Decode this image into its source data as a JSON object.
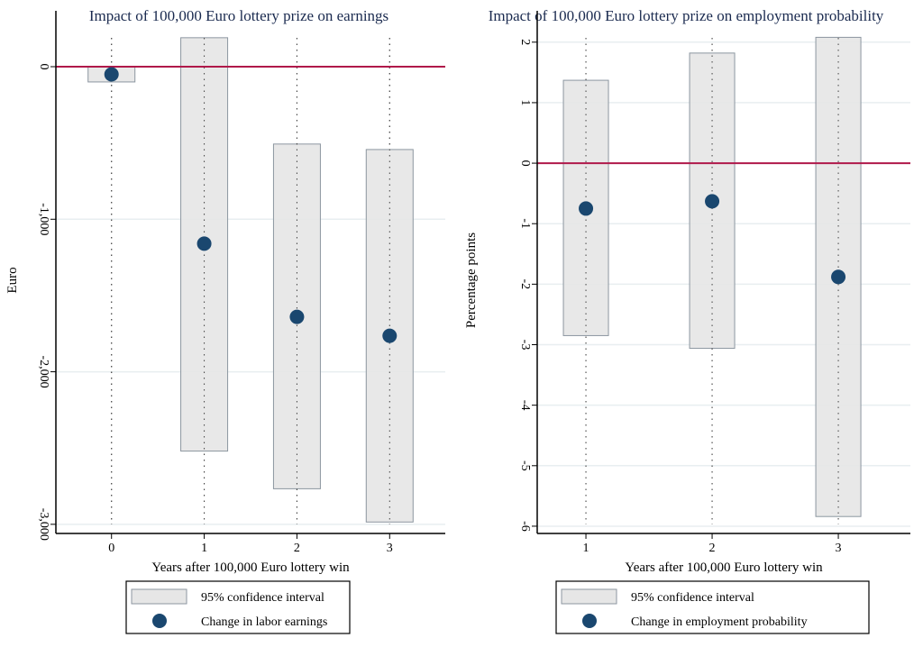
{
  "chart_data": [
    {
      "type": "scatter",
      "title": "Impact of 100,000 Euro lottery prize on earnings",
      "xlabel": "Years after 100,000 Euro lottery win",
      "ylabel": "Euro",
      "x": [
        0,
        1,
        2,
        3
      ],
      "x_tick_labels": [
        "0",
        "1",
        "2",
        "3"
      ],
      "y_ticks": [
        0,
        -1000,
        -2000,
        -3000
      ],
      "y_tick_labels": [
        "0",
        "-1,000",
        "-2,000",
        "-3,000"
      ],
      "xlim": [
        -0.6,
        3.6
      ],
      "ylim": [
        -3060,
        260
      ],
      "series": [
        {
          "name": "95% confidence interval",
          "kind": "range-bar",
          "low": [
            -100,
            -2520,
            -2767,
            -2985
          ],
          "high": [
            0,
            190,
            -507,
            -543
          ]
        },
        {
          "name": "Change in labor earnings",
          "kind": "point",
          "values": [
            -50,
            -1160,
            -1640,
            -1764
          ]
        }
      ],
      "reference_line": 0,
      "grid": true,
      "legend": {
        "placement": "bottom",
        "entries": [
          "95% confidence interval",
          "Change in labor earnings"
        ]
      }
    },
    {
      "type": "scatter",
      "title": "Impact of 100,000 Euro lottery prize on employment probability",
      "xlabel": "Years after 100,000 Euro lottery win",
      "ylabel": "Percentage points",
      "x": [
        1,
        2,
        3
      ],
      "x_tick_labels": [
        "1",
        "2",
        "3"
      ],
      "y_ticks": [
        2,
        1,
        0,
        -1,
        -2,
        -3,
        -4,
        -5,
        -6
      ],
      "y_tick_labels": [
        "2",
        "1",
        "0",
        "-1",
        "-2",
        "-3",
        "-4",
        "-5",
        "-6"
      ],
      "xlim": [
        0.614,
        3.571
      ],
      "ylim": [
        -6.12,
        2.25
      ],
      "series": [
        {
          "name": "95% confidence interval",
          "kind": "range-bar",
          "low": [
            -2.85,
            -3.06,
            -5.84
          ],
          "high": [
            1.37,
            1.82,
            2.08
          ]
        },
        {
          "name": "Change in employment probability",
          "kind": "point",
          "values": [
            -0.75,
            -0.63,
            -1.88
          ]
        }
      ],
      "reference_line": 0,
      "grid": true,
      "legend": {
        "placement": "bottom",
        "entries": [
          "95% confidence interval",
          "Change in employment probability"
        ]
      }
    }
  ],
  "colors": {
    "bar_fill": "#e6e6e6",
    "bar_stroke": "#8c96a0",
    "point": "#1a476f",
    "ref_line": "#b0194a",
    "grid": "#e8eef0",
    "title": "#1a2a4f"
  }
}
